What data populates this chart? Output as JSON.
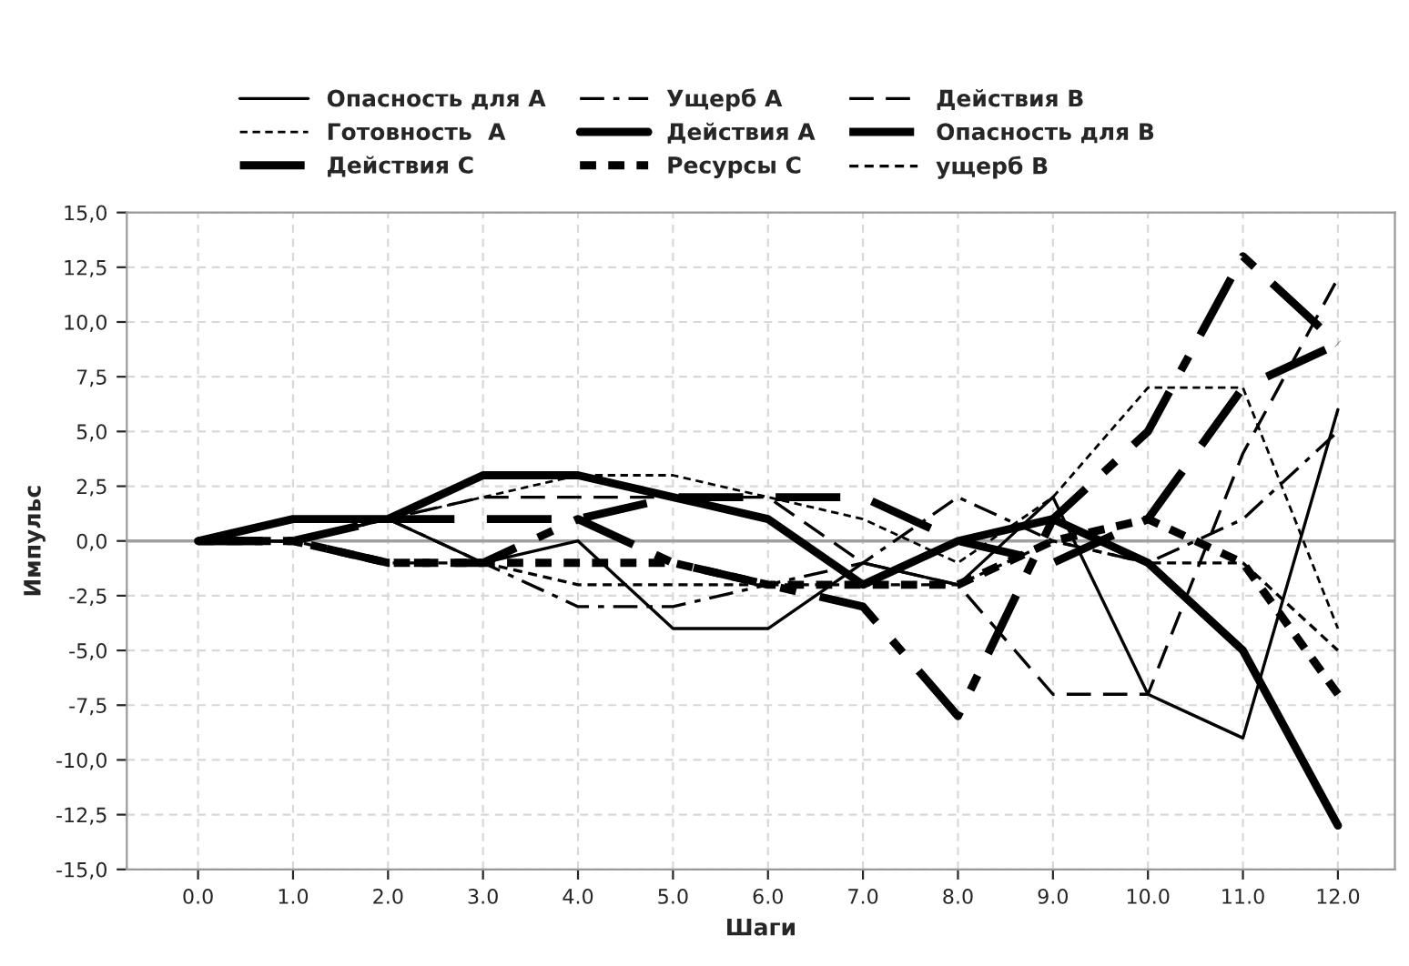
{
  "chart_data": {
    "type": "line",
    "xlabel": "Шаги",
    "ylabel": "Импульс",
    "x": [
      0,
      1,
      2,
      3,
      4,
      5,
      6,
      7,
      8,
      9,
      10,
      11,
      12
    ],
    "xlim": [
      -0.75,
      12.6
    ],
    "ylim": [
      -15,
      15
    ],
    "xticks": [
      {
        "value": 0,
        "label": "0.0"
      },
      {
        "value": 1,
        "label": "1.0"
      },
      {
        "value": 2,
        "label": "2.0"
      },
      {
        "value": 3,
        "label": "3.0"
      },
      {
        "value": 4,
        "label": "4.0"
      },
      {
        "value": 5,
        "label": "5.0"
      },
      {
        "value": 6,
        "label": "6.0"
      },
      {
        "value": 7,
        "label": "7.0"
      },
      {
        "value": 8,
        "label": "8.0"
      },
      {
        "value": 9,
        "label": "9.0"
      },
      {
        "value": 10,
        "label": "10.0"
      },
      {
        "value": 11,
        "label": "11.0"
      },
      {
        "value": 12,
        "label": "12.0"
      }
    ],
    "yticks": [
      {
        "value": -15,
        "label": "-15,0"
      },
      {
        "value": -12.5,
        "label": "-12,5"
      },
      {
        "value": -10,
        "label": "-10,0"
      },
      {
        "value": -7.5,
        "label": "-7,5"
      },
      {
        "value": -5,
        "label": "-5,0"
      },
      {
        "value": -2.5,
        "label": "-2,5"
      },
      {
        "value": 0,
        "label": "0,0"
      },
      {
        "value": 2.5,
        "label": "2,5"
      },
      {
        "value": 5,
        "label": "5,0"
      },
      {
        "value": 7.5,
        "label": "7,5"
      },
      {
        "value": 10,
        "label": "10,0"
      },
      {
        "value": 12.5,
        "label": "12,5"
      },
      {
        "value": 15,
        "label": "15,0"
      }
    ],
    "grid": true,
    "legend": "top",
    "marker": "none",
    "ref_lines": [
      {
        "axis": "y",
        "value": 0,
        "color": "#a0a0a0"
      }
    ],
    "series": [
      {
        "name": "Опасность для A",
        "color": "#000000",
        "line_style": "solid",
        "values": [
          0,
          0,
          1,
          -1,
          0,
          -4,
          -4,
          -1,
          -2,
          2,
          -7,
          -9,
          6
        ]
      },
      {
        "name": "Ущерб A",
        "color": "#000000",
        "line_style": "dashed",
        "values": [
          0,
          0,
          1,
          -1,
          -3,
          -3,
          -2,
          -1,
          2,
          0,
          -1,
          1,
          5
        ]
      },
      {
        "name": "Действия B",
        "color": "#000000",
        "line_style": "dashed",
        "values": [
          0,
          0,
          1,
          2,
          2,
          2,
          2,
          -1,
          -2,
          -7,
          -7,
          4,
          12
        ]
      },
      {
        "name": "Готовность  A",
        "color": "#000000",
        "line_style": "dotted",
        "values": [
          0,
          0,
          1,
          2,
          3,
          3,
          2,
          1,
          -1,
          2,
          7,
          7,
          -4
        ]
      },
      {
        "name": "Действия A",
        "color": "#000000",
        "line_style": "solid",
        "values": [
          0,
          1,
          1,
          3,
          3,
          2,
          1,
          -2,
          0,
          1,
          -1,
          -5,
          -13
        ]
      },
      {
        "name": "Опасность для B",
        "color": "#000000",
        "line_style": "dashed",
        "values": [
          0,
          0,
          1,
          1,
          1,
          2,
          2,
          2,
          0,
          -1,
          1,
          7,
          9
        ]
      },
      {
        "name": "Действия C",
        "color": "#000000",
        "line_style": "dashed",
        "values": [
          0,
          0,
          -1,
          -1,
          1,
          -1,
          -2,
          -3,
          -8,
          1,
          5,
          13,
          9
        ]
      },
      {
        "name": "Ресурсы C",
        "color": "#000000",
        "line_style": "dotted",
        "values": [
          0,
          0,
          -1,
          -1,
          -1,
          -1,
          -2,
          -2,
          -2,
          0,
          1,
          -1,
          -7
        ]
      },
      {
        "name": "ущерб B",
        "color": "#000000",
        "line_style": "dotted",
        "values": [
          0,
          0,
          -1,
          -1,
          -2,
          -2,
          -2,
          -2,
          -2,
          0,
          -1,
          -1,
          -5
        ]
      }
    ]
  }
}
